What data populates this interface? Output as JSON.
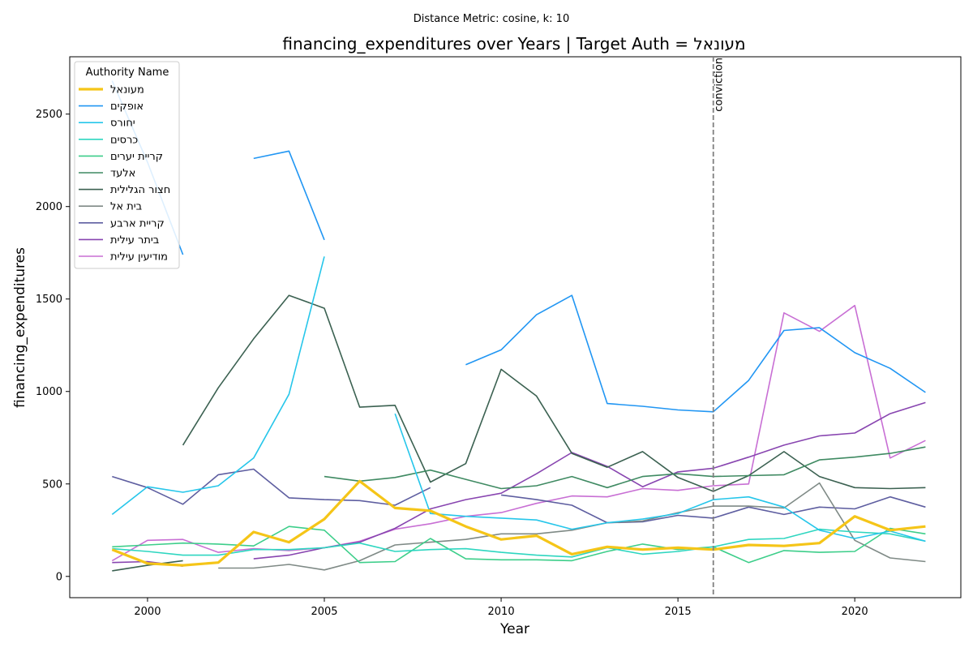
{
  "chart_data": {
    "type": "line",
    "subtitle": "Distance Metric: cosine, k: 10",
    "title": "financing_expenditures over Years | Target Auth = מעונאל",
    "xlabel": "Year",
    "ylabel": "financing_expenditures",
    "xlim": [
      1997.8,
      2023.0
    ],
    "ylim": [
      -115,
      2810
    ],
    "xticks": [
      2000,
      2005,
      2010,
      2015,
      2020
    ],
    "yticks": [
      0,
      500,
      1000,
      1500,
      2000,
      2500
    ],
    "grid": false,
    "legend": {
      "title": "Authority Name",
      "placement": "upper-left"
    },
    "vline": {
      "x": 2016,
      "label": "conviction",
      "color": "#808080"
    },
    "series": [
      {
        "name": "מעונאל",
        "color": "#f5c518",
        "width": 3.2,
        "x": [
          1999,
          2000,
          2001,
          2002,
          2003,
          2004,
          2005,
          2006,
          2007,
          2008,
          2009,
          2010,
          2011,
          2012,
          2013,
          2014,
          2015,
          2016,
          2017,
          2018,
          2019,
          2020,
          2021,
          2022
        ],
        "y": [
          145,
          70,
          60,
          75,
          240,
          185,
          310,
          515,
          370,
          355,
          270,
          200,
          220,
          120,
          160,
          145,
          155,
          145,
          170,
          165,
          180,
          325,
          250,
          270
        ]
      },
      {
        "name": "אופקים",
        "color": "#2196f3",
        "width": 1.6,
        "x": [
          1999,
          2000,
          2001,
          null,
          2003,
          2004,
          2005,
          null,
          2009,
          2010,
          2011,
          2012,
          2013,
          2014,
          2015,
          2016,
          2017,
          2018,
          2019,
          2020,
          2021,
          2022
        ],
        "y": [
          2680,
          2240,
          1740,
          null,
          2260,
          2300,
          1820,
          null,
          1145,
          1225,
          1415,
          1520,
          935,
          920,
          900,
          890,
          1060,
          1330,
          1345,
          1210,
          1125,
          995
        ]
      },
      {
        "name": "יחורס",
        "color": "#26c6ea",
        "width": 1.6,
        "x": [
          1999,
          2000,
          2001,
          2002,
          2003,
          2004,
          2005,
          null,
          2007,
          2008,
          2009,
          2010,
          2011,
          2012,
          2013,
          2014,
          2015,
          2016,
          2017,
          2018,
          2019,
          2020,
          2021,
          2022
        ],
        "y": [
          335,
          485,
          455,
          490,
          640,
          985,
          1730,
          null,
          880,
          340,
          325,
          315,
          305,
          255,
          290,
          310,
          340,
          415,
          430,
          375,
          250,
          205,
          245,
          190
        ]
      },
      {
        "name": "כרסים",
        "color": "#2ed6c0",
        "width": 1.6,
        "x": [
          1999,
          2000,
          2001,
          2002,
          2003,
          2004,
          2005,
          2006,
          2007,
          2008,
          2009,
          2010,
          2011,
          2012,
          2013,
          2014,
          2015,
          2016,
          2017,
          2018,
          2019,
          2020,
          2021,
          2022
        ],
        "y": [
          150,
          135,
          115,
          115,
          145,
          145,
          155,
          180,
          135,
          145,
          150,
          130,
          115,
          105,
          155,
          120,
          135,
          160,
          200,
          205,
          255,
          240,
          230,
          190
        ]
      },
      {
        "name": "קריית יערים",
        "color": "#3dce8a",
        "width": 1.6,
        "x": [
          1999,
          2000,
          2001,
          2002,
          2003,
          2004,
          2005,
          2006,
          2007,
          2008,
          2009,
          2010,
          2011,
          2012,
          2013,
          2014,
          2015,
          2016,
          2017,
          2018,
          2019,
          2020,
          2021,
          2022
        ],
        "y": [
          160,
          170,
          180,
          175,
          165,
          270,
          250,
          75,
          80,
          205,
          95,
          90,
          90,
          85,
          135,
          175,
          145,
          160,
          75,
          140,
          130,
          135,
          260,
          230
        ]
      },
      {
        "name": "אלעד",
        "color": "#3f8a62",
        "width": 1.6,
        "x": [
          2005,
          2006,
          2007,
          2008,
          2009,
          2010,
          2011,
          2012,
          2013,
          2014,
          2015,
          2016,
          2017,
          2018,
          2019,
          2020,
          2021,
          2022
        ],
        "y": [
          540,
          515,
          535,
          575,
          525,
          475,
          490,
          540,
          480,
          540,
          555,
          540,
          545,
          550,
          630,
          645,
          665,
          700
        ]
      },
      {
        "name": "חצור הגלילית",
        "color": "#3b6151",
        "width": 1.6,
        "x": [
          1999,
          2000,
          2001,
          null,
          2001,
          2002,
          2003,
          2004,
          2005,
          2006,
          2007,
          2008,
          2009,
          2010,
          2011,
          2012,
          2013,
          2014,
          2015,
          2016,
          2017,
          2018,
          2019,
          2020,
          2021,
          2022
        ],
        "y": [
          30,
          60,
          85,
          null,
          710,
          1020,
          1285,
          1520,
          1450,
          915,
          925,
          510,
          610,
          1120,
          975,
          665,
          590,
          675,
          535,
          460,
          545,
          675,
          540,
          480,
          475,
          480
        ]
      },
      {
        "name": "בית אל",
        "color": "#7f8a86",
        "width": 1.6,
        "x": [
          2002,
          2003,
          2004,
          2005,
          2006,
          2007,
          2008,
          2009,
          2010,
          2011,
          2012,
          2013,
          2014,
          2015,
          2016,
          2017,
          2018,
          2019,
          2020,
          2021,
          2022
        ],
        "y": [
          45,
          45,
          65,
          35,
          85,
          170,
          185,
          200,
          230,
          230,
          250,
          290,
          300,
          345,
          380,
          380,
          370,
          505,
          195,
          100,
          80
        ]
      },
      {
        "name": "קריית ארבע",
        "color": "#5e5ea0",
        "width": 1.6,
        "x": [
          1999,
          2000,
          2001,
          2002,
          2003,
          2004,
          2005,
          2006,
          2007,
          2008,
          null,
          2010,
          2011,
          2012,
          2013,
          2014,
          2015,
          2016,
          2017,
          2018,
          2019,
          2020,
          2021,
          2022
        ],
        "y": [
          540,
          480,
          390,
          550,
          580,
          425,
          415,
          410,
          385,
          480,
          null,
          440,
          415,
          385,
          290,
          295,
          330,
          315,
          375,
          335,
          375,
          365,
          430,
          375
        ]
      },
      {
        "name": "ביתר עילית",
        "color": "#8845b0",
        "width": 1.6,
        "x": [
          1999,
          2000,
          2001,
          null,
          2003,
          2004,
          2005,
          2006,
          2007,
          2008,
          2009,
          2010,
          2011,
          2012,
          2013,
          2014,
          2015,
          2016,
          2017,
          2018,
          2019,
          2020,
          2021,
          2022
        ],
        "y": [
          75,
          80,
          55,
          null,
          95,
          115,
          155,
          185,
          260,
          365,
          415,
          450,
          555,
          670,
          595,
          485,
          565,
          585,
          645,
          710,
          760,
          775,
          880,
          940
        ]
      },
      {
        "name": "מודיעין עילית",
        "color": "#c86fd4",
        "width": 1.6,
        "x": [
          1999,
          2000,
          2001,
          2002,
          2003,
          2004,
          2005,
          2006,
          2007,
          2008,
          2009,
          2010,
          2011,
          2012,
          2013,
          2014,
          2015,
          2016,
          2017,
          2018,
          2019,
          2020,
          2021,
          2022
        ],
        "y": [
          85,
          195,
          200,
          130,
          150,
          140,
          155,
          190,
          255,
          285,
          325,
          345,
          395,
          435,
          430,
          475,
          465,
          490,
          500,
          1425,
          1325,
          1465,
          640,
          735
        ]
      }
    ]
  }
}
